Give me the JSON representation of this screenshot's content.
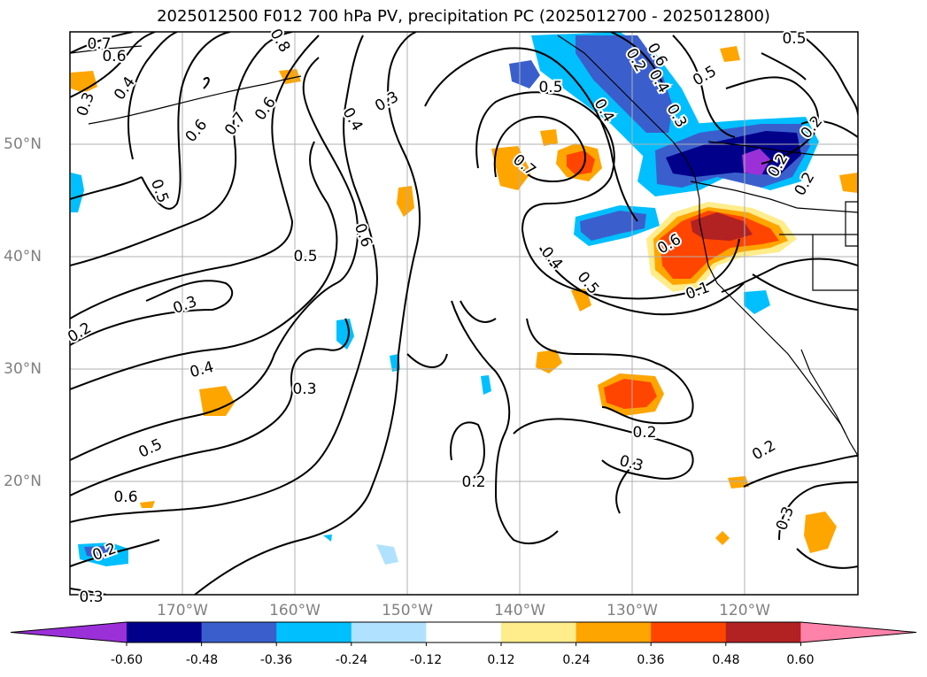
{
  "title": "2025012500 F012 700 hPa PV, precipitation PC (2025012700 - 2025012800)",
  "lon_labels": [
    "170°W",
    "160°W",
    "150°W",
    "140°W",
    "130°W",
    "120°W"
  ],
  "lat_labels": [
    "50°N",
    "40°N",
    "30°N",
    "20°N"
  ],
  "colorbar": {
    "ticks": [
      "-0.60",
      "-0.48",
      "-0.36",
      "-0.24",
      "-0.12",
      "0.12",
      "0.24",
      "0.36",
      "0.48",
      "0.60"
    ],
    "colors": [
      "#9b30d9",
      "#00008b",
      "#3a5fcd",
      "#00bfff",
      "#b0e2ff",
      "#ffffff",
      "#ffec8b",
      "#ffa500",
      "#ff4500",
      "#b22222",
      "#ff82ab"
    ]
  },
  "contour_labels": [
    "0.7",
    "0.6",
    "0.3",
    "0.4",
    "0.5",
    "0.6",
    "0.7",
    "0.6",
    "0.4",
    "0.3",
    "0.8",
    "0.3",
    "0.6",
    "0.5",
    "0.4",
    "0.3",
    "0.5",
    "0.6",
    "0.2",
    "0.7",
    "0.5",
    "0.4",
    "0.3",
    "0.4",
    "0.6",
    "0.5",
    "0.4",
    "0.5",
    "0.6",
    "0.1",
    "0.3",
    "0.2",
    "0.2",
    "0.3",
    "0.2",
    "0.3",
    "0.2",
    "0.2",
    "0.2",
    "0.5",
    "0.2",
    "0.2"
  ]
}
